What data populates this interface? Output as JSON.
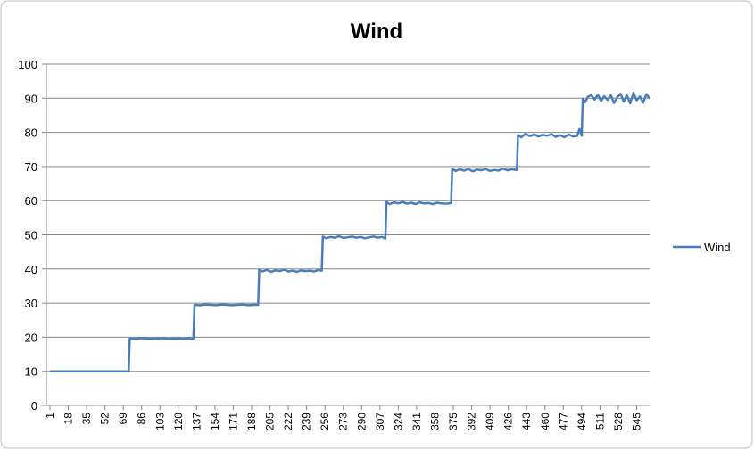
{
  "chart_data": {
    "type": "line",
    "title": "Wind",
    "x": [
      1,
      74,
      75,
      80,
      85,
      90,
      95,
      100,
      105,
      110,
      115,
      120,
      125,
      130,
      134,
      135,
      140,
      145,
      150,
      155,
      160,
      165,
      170,
      175,
      180,
      185,
      190,
      194,
      195,
      198,
      202,
      206,
      210,
      214,
      218,
      222,
      226,
      230,
      234,
      238,
      242,
      246,
      250,
      253,
      254,
      257,
      261,
      265,
      269,
      273,
      277,
      281,
      285,
      289,
      293,
      297,
      301,
      305,
      309,
      312,
      313,
      316,
      320,
      324,
      328,
      332,
      336,
      340,
      344,
      348,
      352,
      356,
      360,
      364,
      368,
      373,
      374,
      377,
      381,
      385,
      389,
      393,
      397,
      401,
      405,
      409,
      413,
      417,
      421,
      425,
      429,
      434,
      435,
      438,
      442,
      446,
      450,
      454,
      458,
      462,
      466,
      470,
      474,
      478,
      482,
      486,
      490,
      492,
      494,
      495,
      497,
      500,
      503,
      506,
      509,
      512,
      515,
      518,
      521,
      524,
      527,
      530,
      533,
      536,
      539,
      542,
      545,
      548,
      551,
      554,
      557
    ],
    "series": [
      {
        "name": "Wind",
        "color": "#4a7ebb",
        "values": [
          10,
          10,
          19.6,
          19.5,
          19.7,
          19.6,
          19.5,
          19.6,
          19.7,
          19.5,
          19.6,
          19.6,
          19.5,
          19.7,
          19.4,
          29.5,
          29.4,
          29.6,
          29.5,
          29.4,
          29.6,
          29.5,
          29.4,
          29.5,
          29.6,
          29.4,
          29.5,
          29.5,
          39.8,
          39.3,
          39.7,
          39.2,
          39.6,
          39.4,
          39.8,
          39.3,
          39.5,
          39.2,
          39.6,
          39.4,
          39.5,
          39.3,
          39.7,
          39.5,
          49.5,
          49.0,
          49.4,
          49.2,
          49.6,
          49.1,
          49.3,
          49.5,
          49.2,
          49.4,
          49.0,
          49.3,
          49.5,
          49.2,
          49.4,
          48.9,
          59.6,
          59.0,
          59.5,
          59.2,
          59.6,
          59.1,
          59.4,
          59.0,
          59.5,
          59.2,
          59.3,
          59.0,
          59.4,
          59.2,
          59.1,
          59.3,
          69.4,
          68.7,
          69.2,
          68.8,
          69.3,
          68.6,
          69.1,
          68.9,
          69.3,
          68.7,
          69.0,
          68.8,
          69.4,
          68.9,
          69.2,
          69.0,
          79.2,
          78.6,
          79.6,
          78.9,
          79.4,
          78.8,
          79.3,
          79.0,
          79.5,
          78.7,
          79.2,
          78.6,
          79.4,
          78.8,
          79.0,
          81.0,
          79.0,
          89.9,
          88.8,
          90.5,
          90.9,
          89.6,
          91.0,
          89.2,
          90.6,
          89.5,
          90.9,
          88.6,
          90.3,
          91.3,
          89.0,
          90.8,
          88.5,
          91.6,
          89.4,
          90.5,
          88.7,
          91.2,
          89.9
        ]
      }
    ],
    "xlim": [
      1,
      557
    ],
    "xticks": [
      1,
      18,
      35,
      52,
      69,
      86,
      103,
      120,
      137,
      154,
      171,
      188,
      205,
      222,
      239,
      256,
      273,
      290,
      307,
      324,
      341,
      358,
      375,
      392,
      409,
      426,
      443,
      460,
      477,
      494,
      511,
      528,
      545
    ],
    "ylim": [
      0,
      100
    ],
    "yticks": [
      0,
      10,
      20,
      30,
      40,
      50,
      60,
      70,
      80,
      90,
      100
    ],
    "grid": true,
    "legend": "right"
  }
}
